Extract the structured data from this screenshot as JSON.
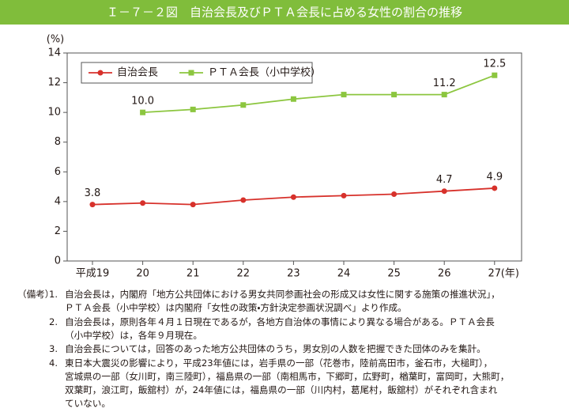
{
  "chart_data": {
    "type": "line",
    "title": "Ｉ－７－２図　自治会長及びＰＴＡ会長に占める女性の割合の推移",
    "y_unit": "(%)",
    "x_unit": "(年)",
    "categories": [
      "平成19",
      "20",
      "21",
      "22",
      "23",
      "24",
      "25",
      "26",
      "27"
    ],
    "series": [
      {
        "name": "自治会長",
        "color": "#d7312b",
        "marker": "circle",
        "values": [
          3.8,
          3.9,
          3.8,
          4.1,
          4.3,
          4.4,
          4.5,
          4.7,
          4.9
        ],
        "value_labels": [
          "3.8",
          null,
          null,
          null,
          null,
          null,
          null,
          "4.7",
          "4.9"
        ]
      },
      {
        "name": "ＰＴＡ会長（小中学校）",
        "color": "#8cc63f",
        "marker": "square",
        "values": [
          null,
          10.0,
          10.2,
          10.5,
          10.9,
          11.2,
          11.2,
          11.2,
          12.5
        ],
        "value_labels": [
          null,
          "10.0",
          null,
          null,
          null,
          null,
          null,
          "11.2",
          "12.5"
        ]
      }
    ],
    "ylim": [
      0,
      14
    ],
    "yticks": [
      0,
      2,
      4,
      6,
      8,
      10,
      12,
      14
    ],
    "legend": "top-left"
  },
  "notes": {
    "heading": "（備考）",
    "items": [
      {
        "number": "1.",
        "lines": [
          "自治会長は，内閣府「地方公共団体における男女共同参画社会の形成又は女性に関する施策の推進状況」，",
          "ＰＴＡ会長（小中学校）は内閣府「女性の政策・方針決定参画状況調べ」より作成。"
        ]
      },
      {
        "number": "2.",
        "lines": [
          "自治会長は，原則各年４月１日現在であるが，各地方自治体の事情により異なる場合がある。ＰＴＡ会長",
          "（小中学校）は，各年９月現在。"
        ]
      },
      {
        "number": "3.",
        "lines": [
          "自治会長については，回答のあった地方公共団体のうち，男女別の人数を把握できた団体のみを集計。"
        ]
      },
      {
        "number": "4.",
        "lines": [
          "東日本大震災の影響により，平成23年値には，岩手県の一部（花巻市，陸前高田市，釜石市，大槌町），",
          "宮城県の一部（女川町，南三陸町），福島県の一部（南相馬市，下郷町，広野町，楢葉町，富岡町，大熊町，",
          "双葉町，浪江町，飯舘村）が，24年値には，福島県の一部（川内村，葛尾村，飯舘村）がそれぞれ含まれ",
          "ていない。"
        ]
      }
    ]
  }
}
